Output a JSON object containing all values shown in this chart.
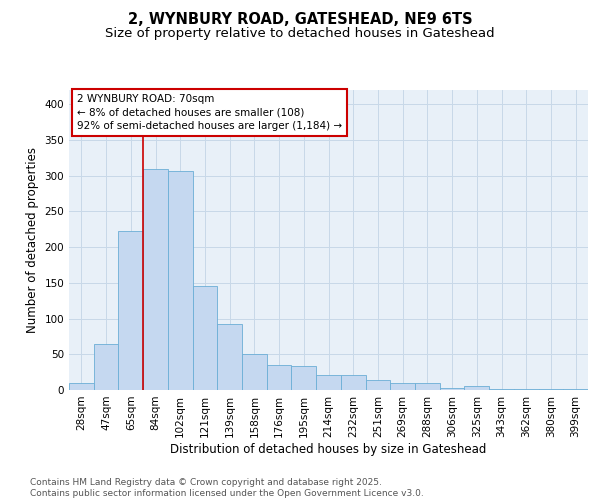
{
  "title1": "2, WYNBURY ROAD, GATESHEAD, NE9 6TS",
  "title2": "Size of property relative to detached houses in Gateshead",
  "xlabel": "Distribution of detached houses by size in Gateshead",
  "ylabel": "Number of detached properties",
  "bar_labels": [
    "28sqm",
    "47sqm",
    "65sqm",
    "84sqm",
    "102sqm",
    "121sqm",
    "139sqm",
    "158sqm",
    "176sqm",
    "195sqm",
    "214sqm",
    "232sqm",
    "251sqm",
    "269sqm",
    "288sqm",
    "306sqm",
    "325sqm",
    "343sqm",
    "362sqm",
    "380sqm",
    "399sqm"
  ],
  "bar_values": [
    10,
    65,
    222,
    310,
    307,
    145,
    93,
    50,
    35,
    34,
    21,
    21,
    14,
    10,
    10,
    3,
    5,
    1,
    2,
    1,
    2
  ],
  "bar_color": "#c5d8f0",
  "bar_edge_color": "#6baed6",
  "vline_index": 2,
  "annotation_text": "2 WYNBURY ROAD: 70sqm\n← 8% of detached houses are smaller (108)\n92% of semi-detached houses are larger (1,184) →",
  "annotation_box_color": "#ffffff",
  "annotation_box_edge": "#cc0000",
  "vline_color": "#cc0000",
  "ylim": [
    0,
    420
  ],
  "yticks": [
    0,
    50,
    100,
    150,
    200,
    250,
    300,
    350,
    400
  ],
  "grid_color": "#c8d8e8",
  "bg_color": "#e8f0f8",
  "footer_text": "Contains HM Land Registry data © Crown copyright and database right 2025.\nContains public sector information licensed under the Open Government Licence v3.0.",
  "title_fontsize": 10.5,
  "subtitle_fontsize": 9.5,
  "axis_label_fontsize": 8.5,
  "tick_fontsize": 7.5,
  "annotation_fontsize": 7.5,
  "footer_fontsize": 6.5
}
